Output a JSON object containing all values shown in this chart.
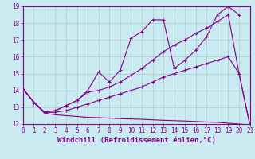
{
  "xlabel": "Windchill (Refroidissement éolien,°C)",
  "background_color": "#c8eaf0",
  "grid_color": "#aacccc",
  "line_color": "#880088",
  "xlim": [
    0,
    21
  ],
  "ylim": [
    12,
    19
  ],
  "yticks": [
    12,
    13,
    14,
    15,
    16,
    17,
    18,
    19
  ],
  "xticks": [
    0,
    1,
    2,
    3,
    4,
    5,
    6,
    7,
    8,
    9,
    10,
    11,
    12,
    13,
    14,
    15,
    16,
    17,
    18,
    19,
    20,
    21
  ],
  "series": [
    {
      "x": [
        0,
        1,
        2,
        3,
        4,
        5,
        6,
        7,
        8,
        9,
        10,
        11,
        12,
        13,
        14,
        15,
        16,
        17,
        18,
        19,
        20,
        21
      ],
      "y": [
        14.1,
        13.3,
        12.65,
        12.55,
        12.5,
        12.45,
        12.4,
        12.38,
        12.35,
        12.32,
        12.3,
        12.28,
        12.25,
        12.22,
        12.2,
        12.18,
        12.15,
        12.12,
        12.1,
        12.05,
        12.0,
        11.95
      ],
      "marker": false
    },
    {
      "x": [
        0,
        1,
        2,
        3,
        4,
        5,
        6,
        7,
        8,
        9,
        10,
        11,
        12,
        13,
        14,
        15,
        16,
        17,
        18,
        19,
        20,
        21
      ],
      "y": [
        14.1,
        13.3,
        12.7,
        12.7,
        12.8,
        13.0,
        13.2,
        13.4,
        13.6,
        13.8,
        14.0,
        14.2,
        14.5,
        14.8,
        15.0,
        15.2,
        15.4,
        15.6,
        15.8,
        16.0,
        15.0,
        11.95
      ],
      "marker": true
    },
    {
      "x": [
        0,
        1,
        2,
        3,
        4,
        5,
        6,
        7,
        8,
        9,
        10,
        11,
        12,
        13,
        14,
        15,
        16,
        17,
        18,
        19,
        20,
        21
      ],
      "y": [
        14.1,
        13.3,
        12.7,
        12.8,
        13.1,
        13.4,
        13.9,
        14.0,
        14.2,
        14.5,
        14.9,
        15.3,
        15.8,
        16.3,
        16.7,
        17.0,
        17.4,
        17.7,
        18.1,
        18.5,
        15.0,
        11.95
      ],
      "marker": true
    },
    {
      "x": [
        0,
        1,
        2,
        3,
        4,
        5,
        6,
        7,
        8,
        9,
        10,
        11,
        12,
        13,
        14,
        15,
        16,
        17,
        18,
        19,
        20
      ],
      "y": [
        14.1,
        13.3,
        12.7,
        12.8,
        13.1,
        13.4,
        14.0,
        15.1,
        14.5,
        15.2,
        17.1,
        17.5,
        18.2,
        18.2,
        15.3,
        15.8,
        16.4,
        17.2,
        18.5,
        19.0,
        18.5
      ],
      "marker": true
    }
  ]
}
